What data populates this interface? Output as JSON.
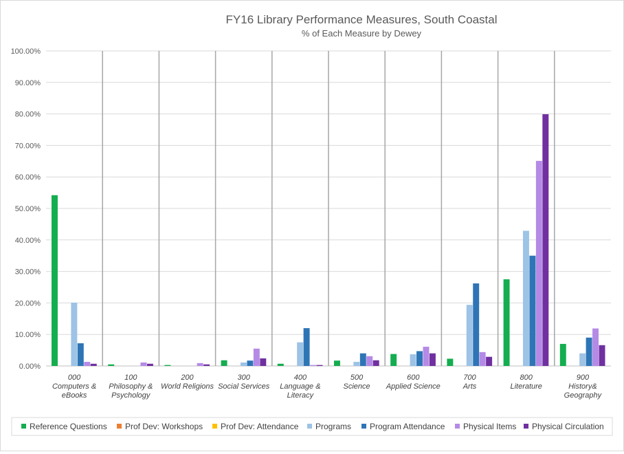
{
  "chart_data": {
    "type": "bar",
    "title": "FY16 Library Performance Measures, South Coastal",
    "subtitle": "% of Each Measure by Dewey",
    "xlabel": "",
    "ylabel": "",
    "ylim": [
      0,
      100
    ],
    "ytick_step": 10,
    "ytick_labels": [
      "0.00%",
      "10.00%",
      "20.00%",
      "30.00%",
      "40.00%",
      "50.00%",
      "60.00%",
      "70.00%",
      "80.00%",
      "90.00%",
      "100.00%"
    ],
    "grid": true,
    "legend_position": "bottom",
    "categories": [
      [
        "000",
        "Computers &",
        "eBooks"
      ],
      [
        "100",
        "Philosophy &",
        "Psychology"
      ],
      [
        "200",
        "World Religions"
      ],
      [
        "300",
        "Social Services"
      ],
      [
        "400",
        "Language &",
        "Literacy"
      ],
      [
        "500",
        "Science"
      ],
      [
        "600",
        "Applied Science"
      ],
      [
        "700",
        "Arts"
      ],
      [
        "800",
        "Literature"
      ],
      [
        "900",
        "History&",
        "Geography"
      ]
    ],
    "series": [
      {
        "name": "Reference Questions",
        "color": "#14ad4f",
        "values": [
          54.2,
          0.5,
          0.3,
          1.8,
          0.7,
          1.7,
          3.8,
          2.3,
          27.5,
          7.0
        ]
      },
      {
        "name": "Prof Dev: Workshops",
        "color": "#ed7d31",
        "values": [
          0,
          0,
          0,
          0,
          0,
          0,
          0,
          0,
          0,
          0
        ]
      },
      {
        "name": "Prof Dev: Attendance",
        "color": "#ffc000",
        "values": [
          0,
          0,
          0,
          0,
          0,
          0,
          0,
          0,
          0,
          0
        ]
      },
      {
        "name": "Programs",
        "color": "#9dc3e6",
        "values": [
          20.1,
          0,
          0,
          1.1,
          7.5,
          1.3,
          3.7,
          19.4,
          42.9,
          4.0
        ]
      },
      {
        "name": "Program Attendance",
        "color": "#2e75b6",
        "values": [
          7.2,
          0,
          0,
          1.7,
          12.0,
          4.0,
          4.7,
          26.2,
          35.0,
          9.0
        ]
      },
      {
        "name": "Physical Items",
        "color": "#b58ae6",
        "values": [
          1.3,
          1.1,
          0.9,
          5.5,
          0.3,
          3.1,
          6.1,
          4.4,
          65.1,
          11.9
        ]
      },
      {
        "name": "Physical Circulation",
        "color": "#7030a0",
        "values": [
          0.7,
          0.7,
          0.5,
          2.4,
          0.3,
          1.8,
          4.0,
          2.9,
          79.9,
          6.6
        ]
      }
    ]
  }
}
